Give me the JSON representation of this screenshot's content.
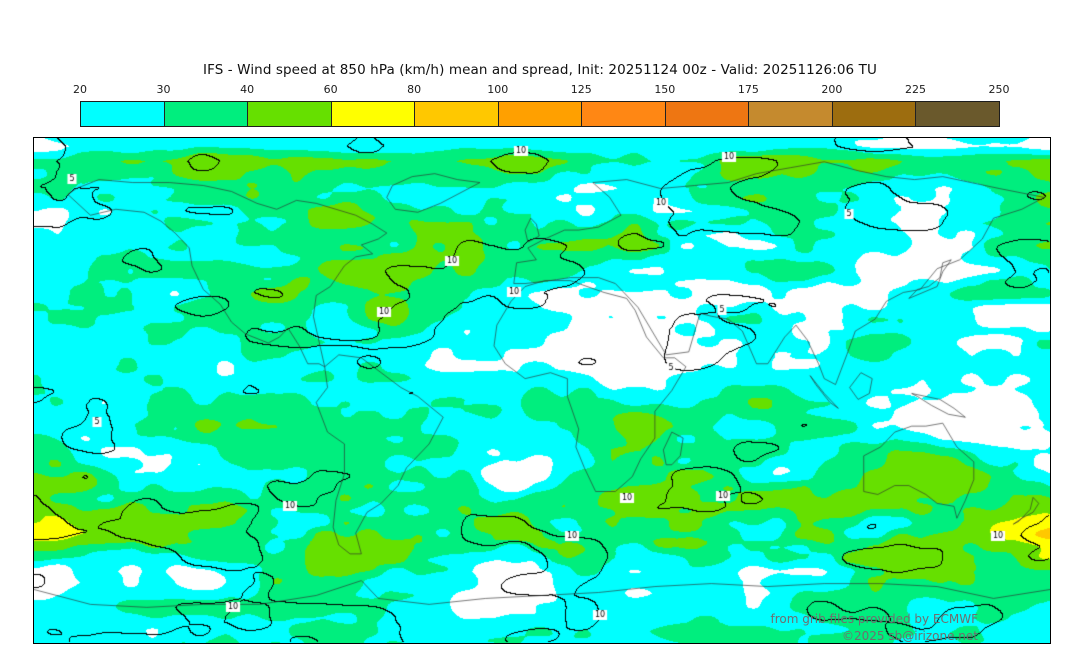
{
  "title": "IFS - Wind speed at 850 hPa (km/h) mean and spread, Init: 20251124 00z - Valid: 20251126:06 TU",
  "colorbar": {
    "ticks": [
      "20",
      "30",
      "40",
      "60",
      "80",
      "100",
      "125",
      "150",
      "175",
      "200",
      "225",
      "250"
    ],
    "segment_colors": [
      "#00ffff",
      "#00ee7e",
      "#66e000",
      "#ffff00",
      "#ffc800",
      "#ffa000",
      "#ff8714",
      "#ee7612",
      "#c58a2e",
      "#9d6d0f",
      "#6a592c"
    ],
    "unit": "km/h"
  },
  "credits": {
    "line1": "from grib files provided by ECMWF",
    "line2": "©2025 sb@irizone.net"
  },
  "map_render": {
    "seed": 20251124,
    "contour_color": "#000000",
    "land_outline_color": "rgba(45,45,45,0.8)",
    "contour_levels": [
      5,
      10,
      15
    ],
    "fill_levels": [
      20,
      30,
      40,
      60,
      80,
      100,
      125
    ],
    "fill_colors": [
      "#00ffff",
      "#00ee7e",
      "#66e000",
      "#ffff00",
      "#ffc800",
      "#ffa000",
      "#ff8714"
    ],
    "band_profile": [
      [
        0.0,
        24,
        6
      ],
      [
        0.015,
        21,
        8
      ],
      [
        0.045,
        40,
        13
      ],
      [
        0.1,
        29,
        17
      ],
      [
        0.17,
        33,
        21
      ],
      [
        0.25,
        30,
        21
      ],
      [
        0.33,
        25,
        19
      ],
      [
        0.42,
        23,
        16
      ],
      [
        0.5,
        22,
        15
      ],
      [
        0.58,
        26,
        17
      ],
      [
        0.66,
        32,
        20
      ],
      [
        0.73,
        47,
        26
      ],
      [
        0.8,
        52,
        27
      ],
      [
        0.86,
        33,
        21
      ],
      [
        0.91,
        28,
        16
      ],
      [
        0.96,
        22,
        12
      ],
      [
        1.0,
        24,
        12
      ]
    ],
    "coastlines": [
      [
        [
          -168,
          66
        ],
        [
          -160,
          59
        ],
        [
          -151,
          61
        ],
        [
          -141,
          60
        ],
        [
          -135,
          57
        ],
        [
          -130,
          53
        ],
        [
          -125,
          48
        ],
        [
          -124,
          42
        ],
        [
          -120,
          34
        ],
        [
          -114,
          29
        ],
        [
          -110,
          23
        ],
        [
          -105,
          19
        ],
        [
          -97,
          16
        ],
        [
          -93,
          18
        ],
        [
          -90,
          21
        ],
        [
          -86,
          15
        ],
        [
          -83,
          9
        ],
        [
          -79,
          9
        ],
        [
          -77,
          8
        ],
        [
          -81,
          25
        ],
        [
          -80,
          32
        ],
        [
          -75,
          35
        ],
        [
          -70,
          42
        ],
        [
          -66,
          45
        ],
        [
          -60,
          46
        ],
        [
          -64,
          49
        ],
        [
          -58,
          51
        ],
        [
          -55,
          53
        ],
        [
          -60,
          56
        ],
        [
          -66,
          59
        ],
        [
          -73,
          61
        ],
        [
          -80,
          63
        ],
        [
          -87,
          64
        ],
        [
          -94,
          61
        ],
        [
          -101,
          63
        ],
        [
          -110,
          67
        ],
        [
          -120,
          69
        ],
        [
          -132,
          70
        ],
        [
          -145,
          70
        ],
        [
          -157,
          71
        ],
        [
          -165,
          68
        ],
        [
          -168,
          66
        ]
      ],
      [
        [
          -52,
          61
        ],
        [
          -55,
          65
        ],
        [
          -53,
          69
        ],
        [
          -46,
          72
        ],
        [
          -38,
          73
        ],
        [
          -30,
          71
        ],
        [
          -22,
          70
        ],
        [
          -28,
          67
        ],
        [
          -36,
          63
        ],
        [
          -44,
          60
        ],
        [
          -52,
          61
        ]
      ],
      [
        [
          -77,
          8
        ],
        [
          -76,
          1
        ],
        [
          -80,
          -4
        ],
        [
          -76,
          -14
        ],
        [
          -70,
          -18
        ],
        [
          -70,
          -28
        ],
        [
          -73,
          -37
        ],
        [
          -74,
          -46
        ],
        [
          -72,
          -52
        ],
        [
          -68,
          -55
        ],
        [
          -64,
          -55
        ],
        [
          -66,
          -48
        ],
        [
          -62,
          -41
        ],
        [
          -57,
          -38
        ],
        [
          -51,
          -32
        ],
        [
          -48,
          -26
        ],
        [
          -40,
          -18
        ],
        [
          -35,
          -9
        ],
        [
          -44,
          -2
        ],
        [
          -50,
          1
        ],
        [
          -57,
          6
        ],
        [
          -64,
          11
        ],
        [
          -72,
          12
        ],
        [
          -77,
          8
        ]
      ],
      [
        [
          -6,
          35
        ],
        [
          -11,
          30
        ],
        [
          -16,
          22
        ],
        [
          -17,
          15
        ],
        [
          -13,
          9
        ],
        [
          -6,
          4
        ],
        [
          3,
          6
        ],
        [
          9,
          4
        ],
        [
          9,
          -2
        ],
        [
          13,
          -13
        ],
        [
          12,
          -19
        ],
        [
          15,
          -26
        ],
        [
          19,
          -34
        ],
        [
          26,
          -34
        ],
        [
          32,
          -29
        ],
        [
          35,
          -23
        ],
        [
          40,
          -16
        ],
        [
          40,
          -7
        ],
        [
          46,
          0
        ],
        [
          51,
          8
        ],
        [
          47,
          11
        ],
        [
          43,
          11
        ],
        [
          37,
          18
        ],
        [
          33,
          27
        ],
        [
          30,
          31
        ],
        [
          22,
          33
        ],
        [
          10,
          37
        ],
        [
          1,
          37
        ],
        [
          -6,
          35
        ]
      ],
      [
        [
          -10,
          36
        ],
        [
          -9,
          43
        ],
        [
          -2,
          44
        ],
        [
          -5,
          48
        ],
        [
          1,
          51
        ],
        [
          8,
          54
        ],
        [
          13,
          54
        ],
        [
          20,
          55
        ],
        [
          28,
          59
        ],
        [
          24,
          65
        ],
        [
          18,
          70
        ],
        [
          30,
          71
        ],
        [
          42,
          68
        ],
        [
          54,
          69
        ],
        [
          66,
          70
        ],
        [
          76,
          73
        ],
        [
          88,
          75
        ],
        [
          100,
          77
        ],
        [
          112,
          74
        ],
        [
          122,
          72
        ],
        [
          132,
          71
        ],
        [
          142,
          72
        ],
        [
          152,
          70
        ],
        [
          162,
          68
        ],
        [
          178,
          65
        ],
        [
          170,
          61
        ],
        [
          160,
          58
        ],
        [
          156,
          51
        ],
        [
          148,
          44
        ],
        [
          140,
          41
        ],
        [
          134,
          34
        ],
        [
          128,
          33
        ],
        [
          122,
          30
        ],
        [
          118,
          24
        ],
        [
          111,
          20
        ],
        [
          108,
          12
        ],
        [
          104,
          2
        ],
        [
          100,
          4
        ],
        [
          98,
          9
        ],
        [
          94,
          17
        ],
        [
          90,
          22
        ],
        [
          86,
          18
        ],
        [
          80,
          9
        ],
        [
          76,
          9
        ],
        [
          71,
          20
        ],
        [
          66,
          24
        ],
        [
          60,
          25
        ],
        [
          56,
          26
        ],
        [
          52,
          13
        ],
        [
          44,
          12
        ],
        [
          34,
          28
        ],
        [
          31,
          31
        ],
        [
          26,
          36
        ],
        [
          20,
          38
        ],
        [
          10,
          38
        ],
        [
          3,
          37
        ],
        [
          -6,
          36
        ],
        [
          -10,
          36
        ]
      ],
      [
        [
          -5,
          50
        ],
        [
          -6,
          54
        ],
        [
          -4,
          58
        ],
        [
          -2,
          56
        ],
        [
          -1,
          52
        ],
        [
          -5,
          50
        ]
      ],
      [
        [
          130,
          31
        ],
        [
          133,
          34
        ],
        [
          137,
          35
        ],
        [
          141,
          38
        ],
        [
          142,
          43
        ],
        [
          145,
          44
        ],
        [
          142,
          40
        ],
        [
          140,
          35
        ],
        [
          135,
          33
        ],
        [
          130,
          31
        ]
      ],
      [
        [
          114,
          -22
        ],
        [
          114,
          -34
        ],
        [
          119,
          -35
        ],
        [
          125,
          -32
        ],
        [
          130,
          -32
        ],
        [
          136,
          -35
        ],
        [
          140,
          -38
        ],
        [
          146,
          -39
        ],
        [
          147,
          -43
        ],
        [
          150,
          -37
        ],
        [
          153,
          -30
        ],
        [
          153,
          -24
        ],
        [
          147,
          -19
        ],
        [
          142,
          -11
        ],
        [
          136,
          -12
        ],
        [
          131,
          -12
        ],
        [
          125,
          -14
        ],
        [
          120,
          -19
        ],
        [
          114,
          -22
        ]
      ],
      [
        [
          167,
          -45
        ],
        [
          170,
          -43
        ],
        [
          174,
          -41
        ],
        [
          176,
          -38
        ],
        [
          174,
          -36
        ],
        [
          173,
          -40
        ],
        [
          169,
          -44
        ],
        [
          167,
          -45
        ]
      ],
      [
        [
          44,
          -25
        ],
        [
          43,
          -20
        ],
        [
          46,
          -14
        ],
        [
          50,
          -16
        ],
        [
          49,
          -22
        ],
        [
          46,
          -25
        ],
        [
          44,
          -25
        ]
      ],
      [
        [
          95,
          5
        ],
        [
          100,
          -1
        ],
        [
          105,
          -6
        ],
        [
          102,
          -4
        ],
        [
          97,
          2
        ],
        [
          95,
          5
        ]
      ],
      [
        [
          109,
          1
        ],
        [
          112,
          -3
        ],
        [
          116,
          -1
        ],
        [
          117,
          4
        ],
        [
          113,
          6
        ],
        [
          109,
          1
        ]
      ],
      [
        [
          131,
          -1
        ],
        [
          136,
          -2
        ],
        [
          141,
          -3
        ],
        [
          146,
          -6
        ],
        [
          150,
          -9
        ],
        [
          144,
          -8
        ],
        [
          138,
          -5
        ],
        [
          133,
          -2
        ],
        [
          131,
          -1
        ]
      ],
      [
        [
          -180,
          -67
        ],
        [
          -160,
          -72
        ],
        [
          -140,
          -73
        ],
        [
          -120,
          -72
        ],
        [
          -100,
          -72
        ],
        [
          -80,
          -69
        ],
        [
          -64,
          -64
        ],
        [
          -58,
          -70
        ],
        [
          -40,
          -72
        ],
        [
          -20,
          -70
        ],
        [
          0,
          -69
        ],
        [
          20,
          -68
        ],
        [
          40,
          -66
        ],
        [
          60,
          -65
        ],
        [
          80,
          -66
        ],
        [
          100,
          -65
        ],
        [
          120,
          -65
        ],
        [
          140,
          -66
        ],
        [
          160,
          -70
        ],
        [
          180,
          -67
        ]
      ]
    ]
  }
}
